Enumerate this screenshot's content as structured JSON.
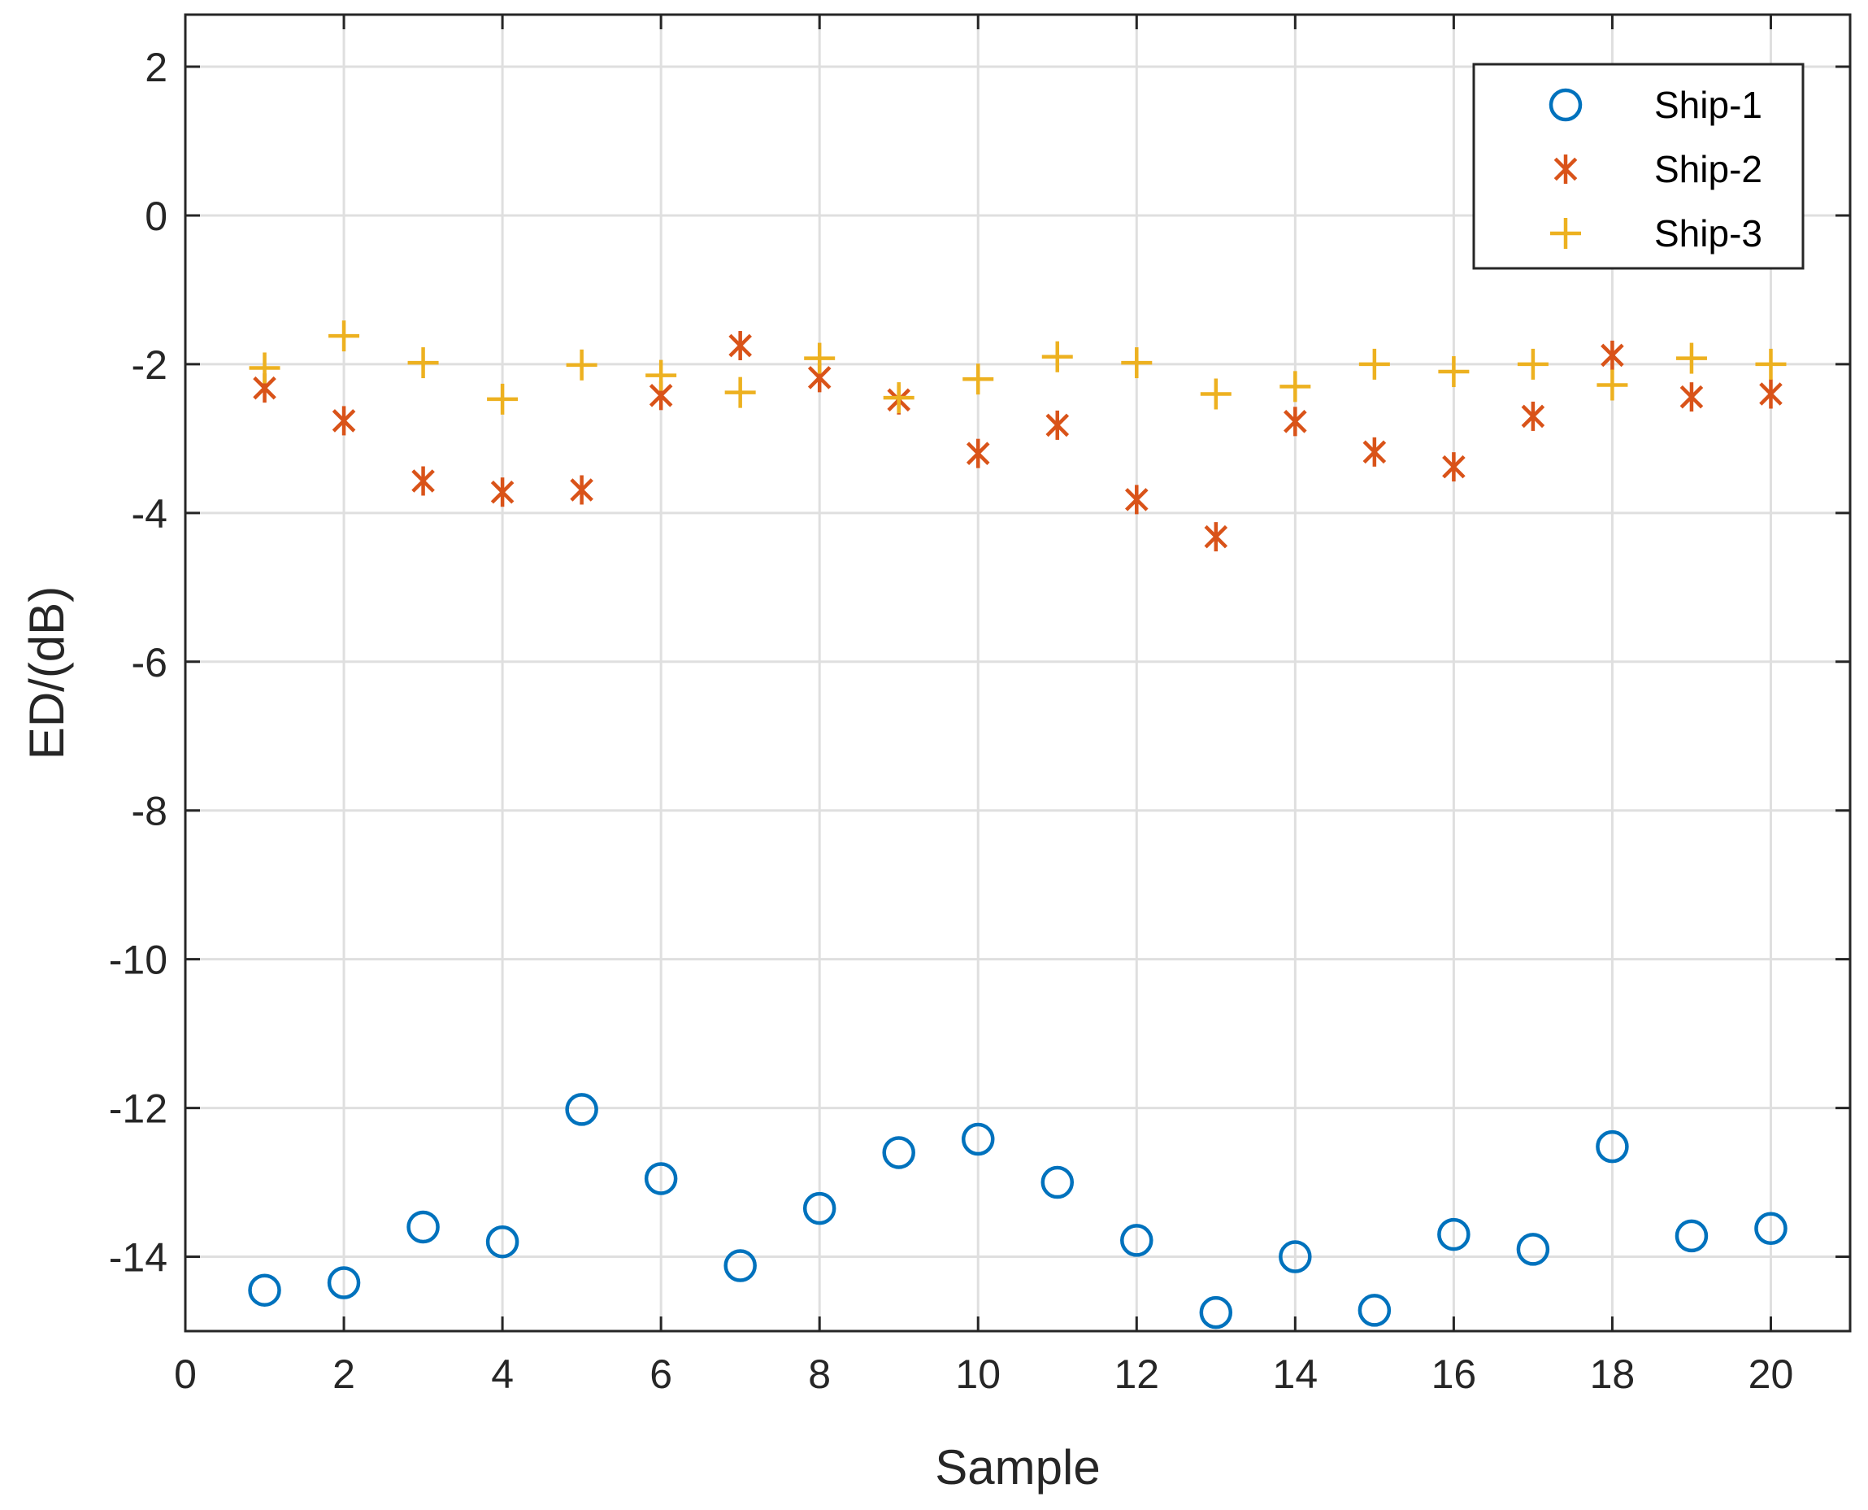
{
  "chart_data": {
    "type": "scatter",
    "title": "",
    "xlabel": "Sample",
    "ylabel": "ED/(dB)",
    "xlim": [
      0,
      21
    ],
    "ylim": [
      -15,
      2.7
    ],
    "xticks": [
      0,
      2,
      4,
      6,
      8,
      10,
      12,
      14,
      16,
      18,
      20
    ],
    "yticks": [
      2,
      0,
      -2,
      -4,
      -6,
      -8,
      -10,
      -12,
      -14
    ],
    "grid": true,
    "legend_position": "top-right",
    "x": [
      1,
      2,
      3,
      4,
      5,
      6,
      7,
      8,
      9,
      10,
      11,
      12,
      13,
      14,
      15,
      16,
      17,
      18,
      19,
      20
    ],
    "series": [
      {
        "name": "Ship-1",
        "marker": "circle",
        "color": "#0072BD",
        "values": [
          -14.45,
          -14.35,
          -13.6,
          -13.8,
          -12.02,
          -12.95,
          -14.12,
          -13.35,
          -12.6,
          -12.42,
          -13.0,
          -13.78,
          -14.75,
          -14.0,
          -14.72,
          -13.7,
          -13.9,
          -12.52,
          -13.72,
          -13.62
        ]
      },
      {
        "name": "Ship-2",
        "marker": "asterisk",
        "color": "#D95319",
        "values": [
          -2.32,
          -2.76,
          -3.57,
          -3.72,
          -3.69,
          -2.42,
          -1.75,
          -2.18,
          -2.48,
          -3.2,
          -2.82,
          -3.82,
          -4.32,
          -2.77,
          -3.18,
          -3.38,
          -2.7,
          -1.88,
          -2.44,
          -2.4
        ]
      },
      {
        "name": "Ship-3",
        "marker": "plus",
        "color": "#EDB120",
        "values": [
          -2.05,
          -1.62,
          -1.98,
          -2.47,
          -2.01,
          -2.15,
          -2.38,
          -1.92,
          -2.45,
          -2.2,
          -1.9,
          -1.98,
          -2.4,
          -2.3,
          -2.0,
          -2.1,
          -2.0,
          -2.28,
          -1.92,
          -2.0
        ]
      }
    ]
  }
}
